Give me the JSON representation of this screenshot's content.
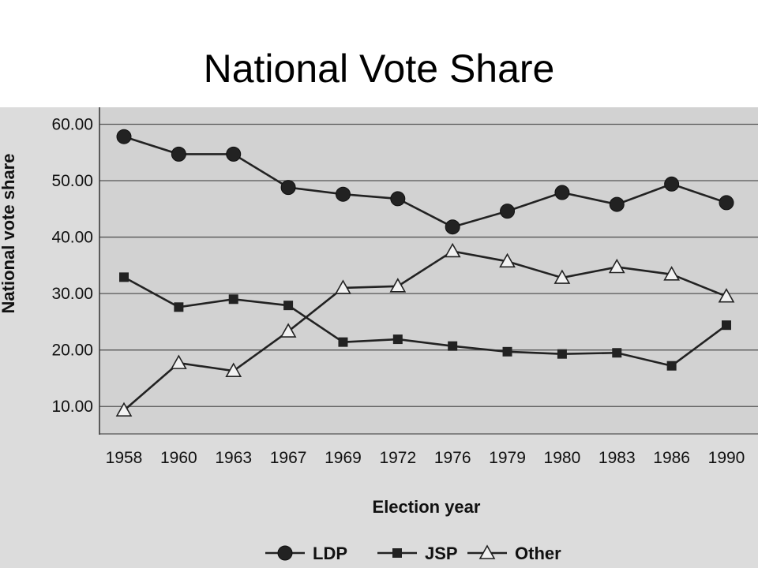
{
  "slide": {
    "title": "National Vote Share"
  },
  "chart_data": {
    "type": "line",
    "title": "",
    "xlabel": "Election year",
    "ylabel": "National vote share",
    "categories": [
      "1958",
      "1960",
      "1963",
      "1967",
      "1969",
      "1972",
      "1976",
      "1979",
      "1980",
      "1983",
      "1986",
      "1990"
    ],
    "yticks": [
      "10.00",
      "20.00",
      "30.00",
      "40.00",
      "50.00",
      "60.00"
    ],
    "ylim": [
      5,
      63
    ],
    "grid": true,
    "legend_position": "bottom",
    "series": [
      {
        "name": "LDP",
        "marker": "circle",
        "values": [
          57.8,
          54.7,
          54.7,
          48.8,
          47.6,
          46.8,
          41.8,
          44.6,
          47.9,
          45.8,
          49.4,
          46.1
        ]
      },
      {
        "name": "JSP",
        "marker": "square",
        "values": [
          32.9,
          27.6,
          29.0,
          27.9,
          21.4,
          21.9,
          20.7,
          19.7,
          19.3,
          19.5,
          17.2,
          24.4
        ]
      },
      {
        "name": "Other",
        "marker": "triangle",
        "values": [
          9.3,
          17.7,
          16.3,
          23.3,
          31.0,
          31.3,
          37.5,
          35.7,
          32.8,
          34.7,
          33.4,
          29.5
        ]
      }
    ]
  }
}
